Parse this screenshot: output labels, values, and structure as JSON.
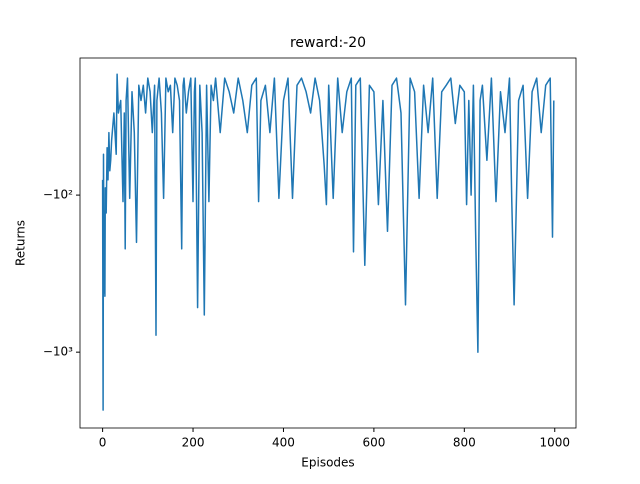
{
  "chart_data": {
    "type": "line",
    "title": "reward:-20",
    "x_label": "Episodes",
    "y_label": "Returns",
    "yscale": "symlog",
    "xlim": [
      -50,
      1047
    ],
    "ylim": [
      -13.4,
      -3040
    ],
    "xticks": [
      0,
      200,
      400,
      600,
      800,
      1000
    ],
    "yticks": [
      {
        "value": -100,
        "label": "−10²"
      },
      {
        "value": -1000,
        "label": "−10³"
      }
    ],
    "series": [
      {
        "color": "#1f77b4",
        "x": [
          0,
          1,
          2,
          3,
          4,
          5,
          6,
          8,
          10,
          12,
          14,
          16,
          18,
          20,
          25,
          30,
          32,
          35,
          40,
          45,
          48,
          50,
          52,
          55,
          60,
          65,
          70,
          75,
          80,
          85,
          90,
          95,
          100,
          105,
          110,
          115,
          118,
          120,
          125,
          130,
          135,
          140,
          145,
          150,
          155,
          160,
          165,
          170,
          175,
          178,
          180,
          185,
          190,
          195,
          200,
          203,
          205,
          210,
          215,
          220,
          225,
          230,
          235,
          240,
          245,
          250,
          260,
          270,
          280,
          290,
          300,
          310,
          320,
          330,
          340,
          345,
          350,
          360,
          370,
          380,
          390,
          400,
          410,
          420,
          430,
          440,
          450,
          460,
          470,
          480,
          490,
          495,
          500,
          510,
          520,
          530,
          540,
          550,
          555,
          560,
          570,
          580,
          590,
          600,
          610,
          620,
          630,
          640,
          650,
          660,
          670,
          680,
          690,
          700,
          710,
          720,
          730,
          740,
          750,
          760,
          770,
          780,
          790,
          800,
          805,
          810,
          815,
          820,
          825,
          830,
          835,
          840,
          850,
          860,
          870,
          880,
          890,
          900,
          905,
          910,
          920,
          930,
          940,
          950,
          960,
          970,
          980,
          990,
          995,
          998
        ],
        "values": [
          -80,
          -2340,
          -55,
          -420,
          -150,
          -440,
          -90,
          -130,
          -50,
          -80,
          -40,
          -70,
          -60,
          -45,
          -30,
          -55,
          -17,
          -30,
          -25,
          -110,
          -30,
          -220,
          -25,
          -18,
          -105,
          -22,
          -40,
          -200,
          -20,
          -25,
          -20,
          -30,
          -18,
          -22,
          -40,
          -20,
          -780,
          -25,
          -18,
          -30,
          -105,
          -18,
          -22,
          -20,
          -40,
          -18,
          -20,
          -25,
          -220,
          -20,
          -18,
          -30,
          -22,
          -18,
          -110,
          -22,
          -18,
          -520,
          -20,
          -40,
          -580,
          -20,
          -110,
          -20,
          -25,
          -18,
          -40,
          -18,
          -22,
          -30,
          -18,
          -25,
          -40,
          -20,
          -18,
          -110,
          -25,
          -20,
          -40,
          -18,
          -105,
          -25,
          -18,
          -105,
          -20,
          -18,
          -22,
          -30,
          -18,
          -25,
          -65,
          -115,
          -20,
          -105,
          -18,
          -40,
          -22,
          -18,
          -230,
          -20,
          -18,
          -280,
          -20,
          -22,
          -115,
          -25,
          -170,
          -20,
          -18,
          -30,
          -500,
          -18,
          -22,
          -105,
          -20,
          -40,
          -18,
          -105,
          -22,
          -20,
          -18,
          -35,
          -20,
          -22,
          -115,
          -25,
          -100,
          -20,
          -170,
          -1000,
          -25,
          -20,
          -60,
          -18,
          -110,
          -22,
          -40,
          -18,
          -110,
          -500,
          -25,
          -20,
          -105,
          -22,
          -18,
          -40,
          -20,
          -18,
          -185,
          -25
        ]
      }
    ]
  }
}
